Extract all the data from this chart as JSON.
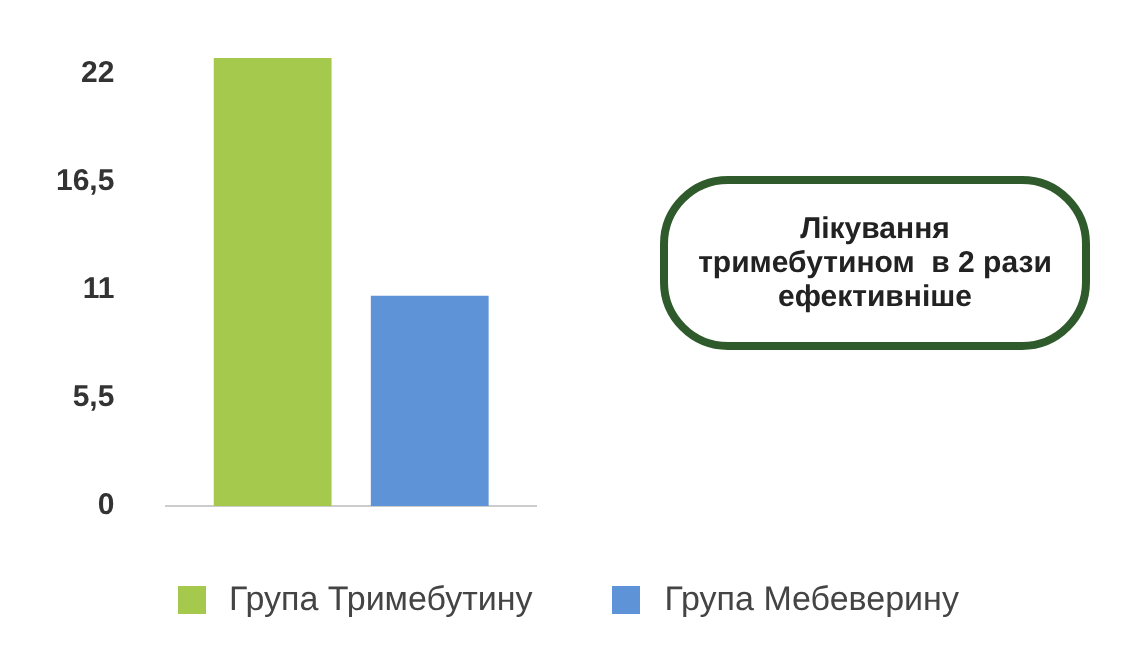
{
  "chart_data": {
    "type": "bar",
    "categories": [
      null
    ],
    "series": [
      {
        "name": "Група Тримебутину",
        "color": "#a5c94c",
        "values": [
          22.8
        ]
      },
      {
        "name": "Група Мебеверину",
        "color": "#5f93d8",
        "values": [
          10.7
        ]
      }
    ],
    "ylim": [
      0,
      23
    ],
    "yticks": [
      0,
      {
        "value": 5.5,
        "label": "5,5"
      },
      11,
      {
        "value": 16.5,
        "label": "16,5"
      },
      22
    ],
    "grid": false,
    "legend": "bottom",
    "annotations": [
      "Лікування тримебутином  в 2 рази ефективніше"
    ]
  }
}
